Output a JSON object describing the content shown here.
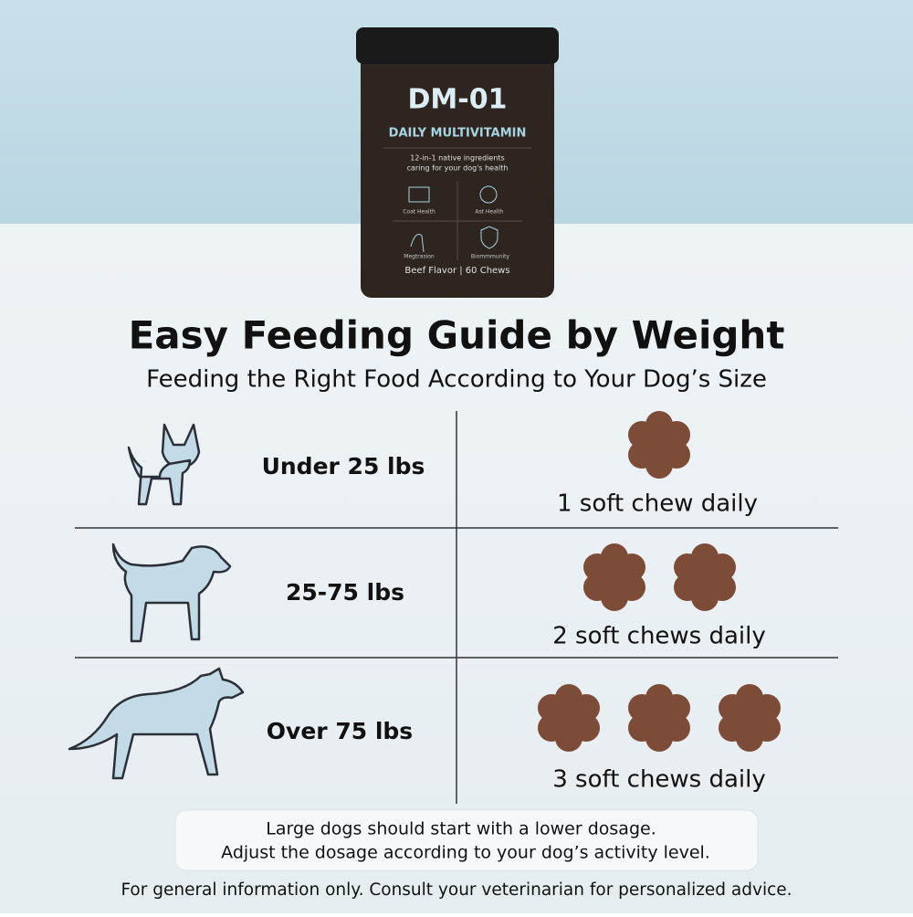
{
  "product": {
    "name": "DM-01",
    "subtitle": "DAILY MULTIVITAMIN",
    "tagline": [
      "12-in-1 native ingredients",
      "caring for your dog's health"
    ],
    "icons": [
      "Coat Health",
      "Ast Health",
      "Megtrasion",
      "Biommmunity"
    ],
    "footer": "Beef Flavor | 60 Chews"
  },
  "header": {
    "title": "Easy Feeding Guide by Weight",
    "subtitle": "Feeding the Right Food According to Your Dog’s Size"
  },
  "table": {
    "rows": [
      [
        "Under 25 lbs",
        "1 soft chew daily"
      ],
      [
        "25-75 lbs",
        "2 soft chews daily"
      ],
      [
        "Over 75 lbs",
        "3 soft chews daily"
      ]
    ]
  },
  "note": [
    "Large dogs should start with a lower dosage.",
    "Adjust the dosage according to your dog’s activity level."
  ],
  "disclaimer": "For general information only. Consult your veterinarian for personalized advice."
}
